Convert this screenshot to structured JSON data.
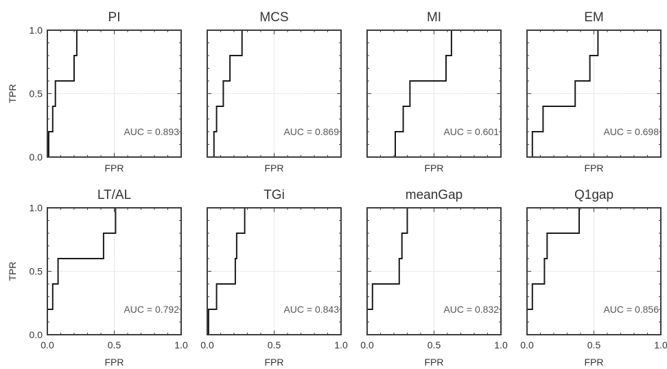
{
  "figure": {
    "ylabel": "TPR",
    "xlabel": "FPR",
    "tick_labels": [
      "0.0",
      "0.5",
      "1.0"
    ]
  },
  "colors": {
    "curve": "#1a1a1a",
    "frame": "#3c3c3c",
    "grid": "#b0b0b0",
    "text": "#333333",
    "annotation": "#555555"
  },
  "chart_data": [
    {
      "type": "line",
      "title": "PI",
      "annotation": "AUC = 0.893",
      "xlabel": "FPR",
      "ylabel": "TPR",
      "xlim": [
        0,
        1
      ],
      "ylim": [
        0,
        1
      ],
      "grid": true,
      "x": [
        0,
        0.01,
        0.01,
        0.04,
        0.04,
        0.06,
        0.06,
        0.2,
        0.2,
        0.22,
        0.22,
        1.0
      ],
      "y": [
        0,
        0,
        0.2,
        0.2,
        0.4,
        0.4,
        0.6,
        0.6,
        0.8,
        0.8,
        1.0,
        1.0
      ]
    },
    {
      "type": "line",
      "title": "MCS",
      "annotation": "AUC = 0.869",
      "xlabel": "FPR",
      "ylabel": "TPR",
      "xlim": [
        0,
        1
      ],
      "ylim": [
        0,
        1
      ],
      "grid": true,
      "x": [
        0,
        0.05,
        0.05,
        0.07,
        0.07,
        0.12,
        0.12,
        0.17,
        0.17,
        0.2,
        0.2,
        0.26,
        0.26,
        1.0
      ],
      "y": [
        0,
        0,
        0.2,
        0.2,
        0.4,
        0.4,
        0.6,
        0.6,
        0.8,
        0.8,
        0.8,
        0.8,
        1.0,
        1.0
      ]
    },
    {
      "type": "line",
      "title": "MI",
      "annotation": "AUC = 0.601",
      "xlabel": "FPR",
      "ylabel": "TPR",
      "xlim": [
        0,
        1
      ],
      "ylim": [
        0,
        1
      ],
      "grid": true,
      "x": [
        0,
        0.21,
        0.21,
        0.27,
        0.27,
        0.32,
        0.32,
        0.59,
        0.59,
        0.63,
        0.63,
        1.0
      ],
      "y": [
        0,
        0,
        0.2,
        0.2,
        0.4,
        0.4,
        0.6,
        0.6,
        0.8,
        0.8,
        1.0,
        1.0
      ]
    },
    {
      "type": "line",
      "title": "EM",
      "annotation": "AUC = 0.698",
      "xlabel": "FPR",
      "ylabel": "TPR",
      "xlim": [
        0,
        1
      ],
      "ylim": [
        0,
        1
      ],
      "grid": true,
      "x": [
        0,
        0.04,
        0.04,
        0.12,
        0.12,
        0.36,
        0.36,
        0.47,
        0.47,
        0.53,
        0.53,
        1.0
      ],
      "y": [
        0,
        0,
        0.2,
        0.2,
        0.4,
        0.4,
        0.6,
        0.6,
        0.8,
        0.8,
        1.0,
        1.0
      ]
    },
    {
      "type": "line",
      "title": "LT/AL",
      "annotation": "AUC = 0.792",
      "xlabel": "FPR",
      "ylabel": "TPR",
      "xlim": [
        0,
        1
      ],
      "ylim": [
        0,
        1
      ],
      "grid": true,
      "x": [
        0,
        0.04,
        0.04,
        0.08,
        0.08,
        0.42,
        0.42,
        0.51,
        0.51,
        1.0
      ],
      "y": [
        0.2,
        0.2,
        0.4,
        0.4,
        0.6,
        0.6,
        0.8,
        0.8,
        1.0,
        1.0
      ]
    },
    {
      "type": "line",
      "title": "TGi",
      "annotation": "AUC = 0.843",
      "xlabel": "FPR",
      "ylabel": "TPR",
      "xlim": [
        0,
        1
      ],
      "ylim": [
        0,
        1
      ],
      "grid": true,
      "x": [
        0,
        0.01,
        0.01,
        0.07,
        0.07,
        0.21,
        0.21,
        0.22,
        0.22,
        0.26,
        0.26,
        0.28,
        0.28,
        1.0
      ],
      "y": [
        0,
        0,
        0.2,
        0.2,
        0.4,
        0.4,
        0.6,
        0.6,
        0.8,
        0.8,
        0.8,
        0.8,
        1.0,
        1.0
      ]
    },
    {
      "type": "line",
      "title": "meanGap",
      "annotation": "AUC = 0.832",
      "xlabel": "FPR",
      "ylabel": "TPR",
      "xlim": [
        0,
        1
      ],
      "ylim": [
        0,
        1
      ],
      "grid": true,
      "x": [
        0,
        0.04,
        0.04,
        0.24,
        0.24,
        0.26,
        0.26,
        0.3,
        0.3,
        1.0
      ],
      "y": [
        0.2,
        0.2,
        0.4,
        0.4,
        0.6,
        0.6,
        0.8,
        0.8,
        1.0,
        1.0
      ]
    },
    {
      "type": "line",
      "title": "Q1gap",
      "annotation": "AUC = 0.856",
      "xlabel": "FPR",
      "ylabel": "TPR",
      "xlim": [
        0,
        1
      ],
      "ylim": [
        0,
        1
      ],
      "grid": true,
      "x": [
        0,
        0.04,
        0.04,
        0.13,
        0.13,
        0.15,
        0.15,
        0.39,
        0.39,
        1.0
      ],
      "y": [
        0.2,
        0.2,
        0.4,
        0.4,
        0.6,
        0.6,
        0.8,
        0.8,
        1.0,
        1.0
      ]
    }
  ]
}
